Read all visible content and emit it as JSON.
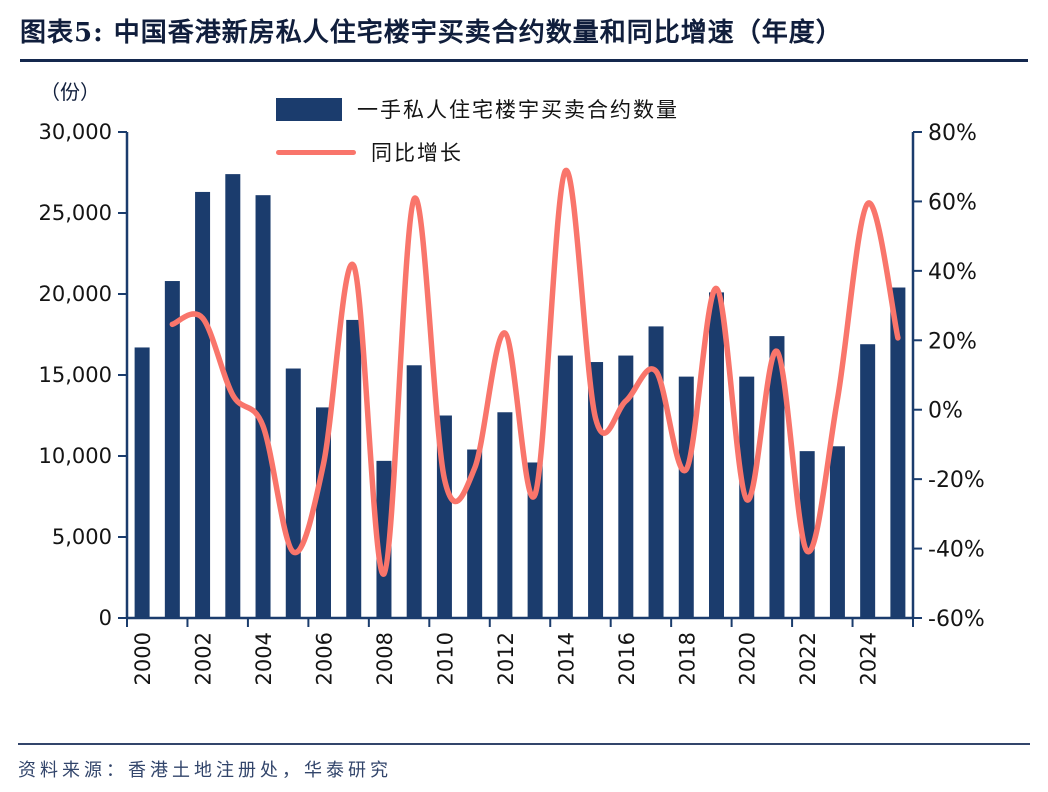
{
  "header": {
    "title": "图表5:  中国香港新房私人住宅楼宇买卖合约数量和同比增速（年度）"
  },
  "footer": {
    "source": "资料来源：香港土地注册处，华泰研究"
  },
  "chart_data": {
    "type": "bar+line",
    "title": "中国香港新房私人住宅楼宇买卖合约数量和同比增速（年度）",
    "unit_label": "（份）",
    "legend_position": "top",
    "grid": false,
    "axis_color": "#1B3C6D",
    "tick_label_color": "#141414",
    "categories": [
      "2000",
      "2001",
      "2002",
      "2003",
      "2004",
      "2005",
      "2006",
      "2007",
      "2008",
      "2009",
      "2010",
      "2011",
      "2012",
      "2013",
      "2014",
      "2015",
      "2016",
      "2017",
      "2018",
      "2019",
      "2020",
      "2021",
      "2022",
      "2023",
      "2024",
      "2025"
    ],
    "series": [
      {
        "name": "一手私人住宅楼宇买卖合约数量",
        "type": "bar",
        "axis": "left",
        "color": "#1B3C6D",
        "values": [
          16700,
          20800,
          26300,
          27400,
          26100,
          15400,
          13000,
          18400,
          9700,
          15600,
          12500,
          10400,
          12700,
          9600,
          16200,
          15800,
          16200,
          18000,
          14900,
          20100,
          14900,
          17400,
          10300,
          10600,
          16900,
          20400
        ]
      },
      {
        "name": "同比增长",
        "type": "line",
        "axis": "right",
        "color": "#F9756B",
        "values": [
          null,
          24.6,
          26.4,
          4.2,
          -4.7,
          -41.0,
          -15.6,
          41.5,
          -47.3,
          60.8,
          -19.9,
          -16.8,
          22.1,
          -24.4,
          68.8,
          -2.5,
          2.5,
          11.1,
          -17.2,
          34.9,
          -25.9,
          16.8,
          -40.8,
          2.9,
          59.4,
          20.7
        ]
      }
    ],
    "left_axis": {
      "min": 0,
      "max": 30000,
      "step": 5000,
      "tick_labels": [
        "0",
        "5,000",
        "10,000",
        "15,000",
        "20,000",
        "25,000",
        "30,000"
      ]
    },
    "right_axis": {
      "min": -60,
      "max": 80,
      "step": 20,
      "tick_labels": [
        "-60%",
        "-40%",
        "-20%",
        "0%",
        "20%",
        "40%",
        "60%",
        "80%"
      ]
    },
    "x_tick_labels": [
      "2000",
      "2002",
      "2004",
      "2006",
      "2008",
      "2010",
      "2012",
      "2014",
      "2016",
      "2018",
      "2020",
      "2022",
      "2024"
    ]
  }
}
